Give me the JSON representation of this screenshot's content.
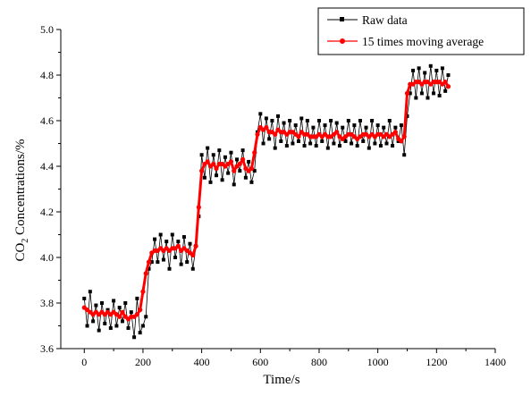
{
  "chart_data": {
    "type": "scatter",
    "title": "",
    "xlabel": "Time/s",
    "ylabel": {
      "prefix": "CO",
      "subscript": "2",
      "suffix": " Concentrations/%"
    },
    "xlim": [
      -80,
      1400
    ],
    "ylim": [
      3.6,
      5.0
    ],
    "xticks": [
      "0",
      "200",
      "400",
      "600",
      "800",
      "1000",
      "1200",
      "1400"
    ],
    "yticks": [
      "3.6",
      "3.8",
      "4.0",
      "4.2",
      "4.4",
      "4.6",
      "4.8",
      "5.0"
    ],
    "grid": false,
    "legend_position": "top-right",
    "series": [
      {
        "name": "Raw data",
        "color": "#000000",
        "marker": "square",
        "x": [
          0,
          10,
          20,
          30,
          40,
          50,
          60,
          70,
          80,
          90,
          100,
          110,
          120,
          130,
          140,
          150,
          160,
          170,
          180,
          190,
          200,
          210,
          220,
          230,
          240,
          250,
          260,
          270,
          280,
          290,
          300,
          310,
          320,
          330,
          340,
          350,
          360,
          370,
          380,
          390,
          400,
          410,
          420,
          430,
          440,
          450,
          460,
          470,
          480,
          490,
          500,
          510,
          520,
          530,
          540,
          550,
          560,
          570,
          580,
          590,
          600,
          610,
          620,
          630,
          640,
          650,
          660,
          670,
          680,
          690,
          700,
          710,
          720,
          730,
          740,
          750,
          760,
          770,
          780,
          790,
          800,
          810,
          820,
          830,
          840,
          850,
          860,
          870,
          880,
          890,
          900,
          910,
          920,
          930,
          940,
          950,
          960,
          970,
          980,
          990,
          1000,
          1010,
          1020,
          1030,
          1040,
          1050,
          1060,
          1070,
          1080,
          1090,
          1100,
          1110,
          1120,
          1130,
          1140,
          1150,
          1160,
          1170,
          1180,
          1190,
          1200,
          1210,
          1220,
          1230,
          1240
        ],
        "values": [
          3.82,
          3.7,
          3.85,
          3.72,
          3.79,
          3.68,
          3.8,
          3.71,
          3.77,
          3.69,
          3.81,
          3.7,
          3.78,
          3.72,
          3.8,
          3.69,
          3.76,
          3.65,
          3.82,
          3.67,
          3.7,
          3.74,
          3.95,
          3.98,
          4.08,
          3.98,
          4.1,
          3.99,
          4.07,
          3.95,
          4.1,
          4.0,
          4.07,
          3.97,
          4.09,
          3.98,
          4.06,
          3.95,
          4.05,
          4.18,
          4.45,
          4.35,
          4.48,
          4.33,
          4.45,
          4.36,
          4.47,
          4.34,
          4.44,
          4.37,
          4.46,
          4.32,
          4.43,
          4.38,
          4.47,
          4.35,
          4.42,
          4.33,
          4.38,
          4.55,
          4.63,
          4.5,
          4.61,
          4.52,
          4.6,
          4.48,
          4.62,
          4.51,
          4.59,
          4.49,
          4.6,
          4.5,
          4.58,
          4.51,
          4.61,
          4.49,
          4.6,
          4.5,
          4.57,
          4.49,
          4.6,
          4.51,
          4.58,
          4.48,
          4.6,
          4.5,
          4.59,
          4.49,
          4.57,
          4.51,
          4.6,
          4.5,
          4.58,
          4.49,
          4.6,
          4.51,
          4.57,
          4.48,
          4.6,
          4.5,
          4.58,
          4.49,
          4.57,
          4.5,
          4.6,
          4.49,
          4.57,
          4.51,
          4.58,
          4.45,
          4.62,
          4.72,
          4.82,
          4.7,
          4.83,
          4.72,
          4.81,
          4.7,
          4.84,
          4.72,
          4.82,
          4.71,
          4.83,
          4.73,
          4.8
        ]
      },
      {
        "name": "15 times moving average",
        "color": "#ff0000",
        "marker": "circle",
        "x": [
          0,
          10,
          20,
          30,
          40,
          50,
          60,
          70,
          80,
          90,
          100,
          110,
          120,
          130,
          140,
          150,
          160,
          170,
          180,
          190,
          200,
          210,
          220,
          230,
          240,
          250,
          260,
          270,
          280,
          290,
          300,
          310,
          320,
          330,
          340,
          350,
          360,
          370,
          380,
          390,
          400,
          410,
          420,
          430,
          440,
          450,
          460,
          470,
          480,
          490,
          500,
          510,
          520,
          530,
          540,
          550,
          560,
          570,
          580,
          590,
          600,
          610,
          620,
          630,
          640,
          650,
          660,
          670,
          680,
          690,
          700,
          710,
          720,
          730,
          740,
          750,
          760,
          770,
          780,
          790,
          800,
          810,
          820,
          830,
          840,
          850,
          860,
          870,
          880,
          890,
          900,
          910,
          920,
          930,
          940,
          950,
          960,
          970,
          980,
          990,
          1000,
          1010,
          1020,
          1030,
          1040,
          1050,
          1060,
          1070,
          1080,
          1090,
          1100,
          1110,
          1120,
          1130,
          1140,
          1150,
          1160,
          1170,
          1180,
          1190,
          1200,
          1210,
          1220,
          1230,
          1240
        ],
        "values": [
          3.78,
          3.77,
          3.76,
          3.75,
          3.76,
          3.75,
          3.76,
          3.75,
          3.76,
          3.75,
          3.76,
          3.75,
          3.74,
          3.76,
          3.74,
          3.73,
          3.74,
          3.74,
          3.75,
          3.77,
          3.85,
          3.93,
          3.98,
          4.02,
          4.03,
          4.03,
          4.04,
          4.03,
          4.04,
          4.03,
          4.04,
          4.04,
          4.05,
          4.03,
          4.04,
          4.03,
          4.02,
          4.01,
          4.05,
          4.22,
          4.38,
          4.41,
          4.42,
          4.4,
          4.41,
          4.39,
          4.41,
          4.41,
          4.4,
          4.41,
          4.42,
          4.38,
          4.4,
          4.41,
          4.43,
          4.39,
          4.38,
          4.39,
          4.46,
          4.54,
          4.57,
          4.56,
          4.57,
          4.55,
          4.55,
          4.54,
          4.56,
          4.55,
          4.55,
          4.54,
          4.55,
          4.55,
          4.54,
          4.53,
          4.55,
          4.54,
          4.54,
          4.53,
          4.53,
          4.53,
          4.54,
          4.53,
          4.54,
          4.53,
          4.53,
          4.54,
          4.55,
          4.53,
          4.52,
          4.53,
          4.54,
          4.54,
          4.53,
          4.52,
          4.53,
          4.54,
          4.54,
          4.53,
          4.54,
          4.53,
          4.54,
          4.54,
          4.53,
          4.54,
          4.53,
          4.54,
          4.55,
          4.52,
          4.51,
          4.53,
          4.72,
          4.76,
          4.76,
          4.77,
          4.77,
          4.76,
          4.77,
          4.77,
          4.76,
          4.77,
          4.77,
          4.77,
          4.76,
          4.77,
          4.75
        ]
      }
    ]
  }
}
